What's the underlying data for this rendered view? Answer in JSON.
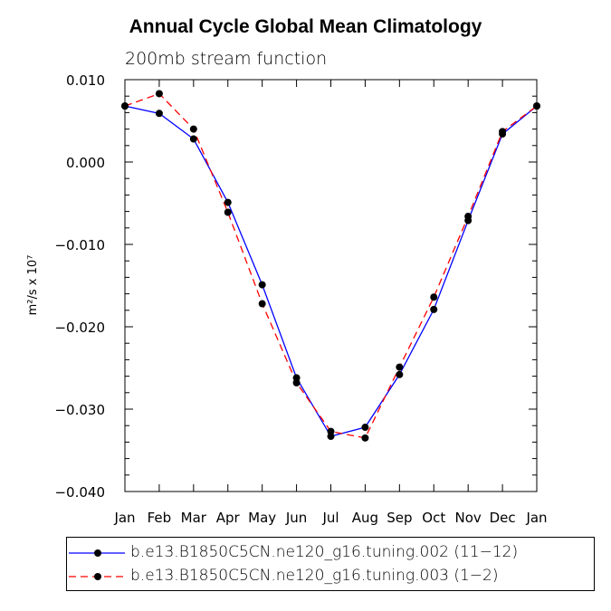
{
  "chart_data": {
    "type": "line",
    "title": "Annual Cycle Global Mean Climatology",
    "subtitle": "200mb stream function",
    "ylabel": "m²/s x 10⁷",
    "xlabel": "",
    "categories": [
      "Jan",
      "Feb",
      "Mar",
      "Apr",
      "May",
      "Jun",
      "Jul",
      "Aug",
      "Sep",
      "Oct",
      "Nov",
      "Dec",
      "Jan"
    ],
    "ylim": [
      -0.04,
      0.01
    ],
    "yticks": [
      0.01,
      0.0,
      -0.01,
      -0.02,
      -0.03,
      -0.04
    ],
    "ytick_labels": [
      "0.010",
      "0.000",
      "−0.010",
      "−0.020",
      "−0.030",
      "−0.040"
    ],
    "series": [
      {
        "name": "b.e13.B1850C5CN.ne120_g16.tuning.002 (11−12)",
        "color": "#0000ff",
        "dash": "solid",
        "values": [
          0.0068,
          0.0059,
          0.0028,
          -0.0049,
          -0.0149,
          -0.0262,
          -0.0333,
          -0.0322,
          -0.0258,
          -0.0179,
          -0.0071,
          0.0034,
          0.0068
        ]
      },
      {
        "name": "b.e13.B1850C5CN.ne120_g16.tuning.003 (1−2)",
        "color": "#ff0000",
        "dash": "dashed",
        "values": [
          0.0068,
          0.0083,
          0.004,
          -0.0061,
          -0.0172,
          -0.0268,
          -0.0327,
          -0.0335,
          -0.0249,
          -0.0164,
          -0.0066,
          0.0037,
          0.0068
        ]
      }
    ],
    "legend_position": "bottom"
  }
}
